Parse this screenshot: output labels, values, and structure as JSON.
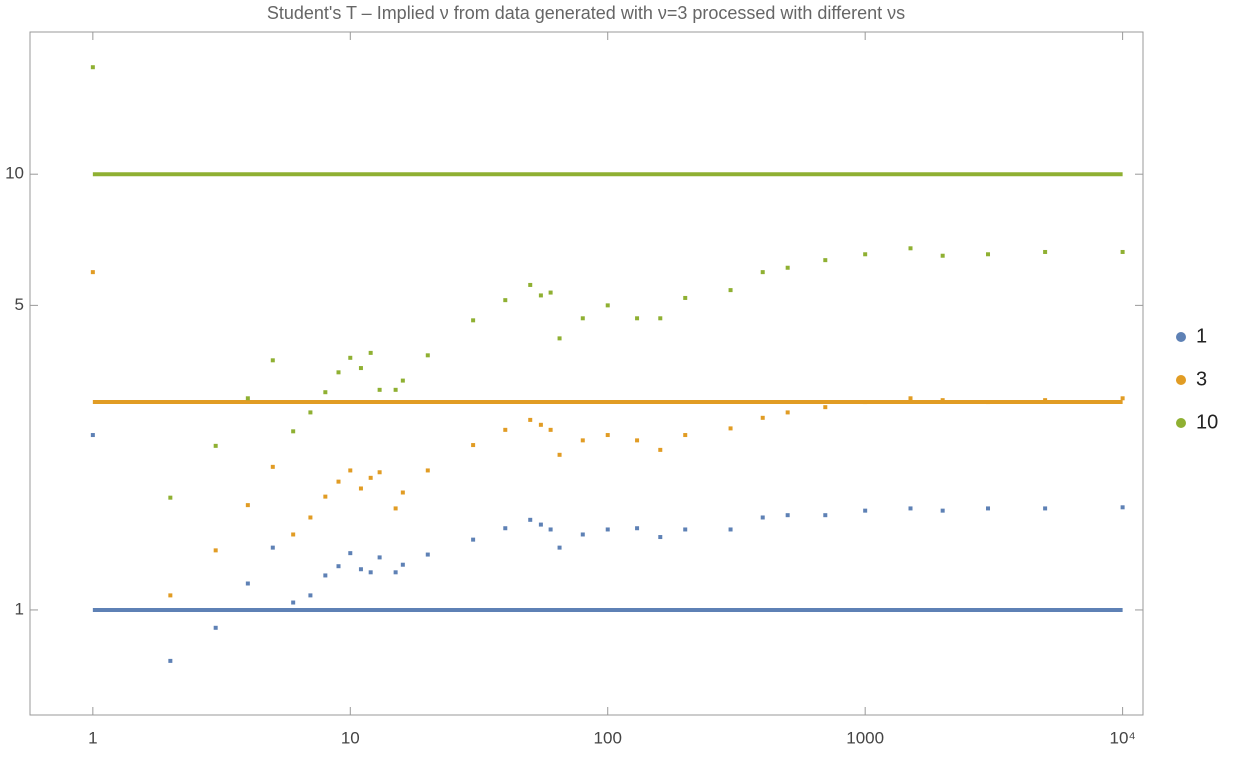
{
  "chart_data": {
    "type": "scatter",
    "title": "Student's T – Implied ν from data generated with ν=3 processed with different νs",
    "x_scale": "log",
    "y_scale": "log",
    "xlim": [
      0.57,
      12000
    ],
    "ylim": [
      0.574,
      21.2
    ],
    "xticks": [
      1,
      10,
      100,
      1000,
      {
        "value": 10000,
        "label": "10⁴"
      }
    ],
    "yticks": [
      1,
      5,
      10
    ],
    "legend": "right",
    "x": [
      1,
      2,
      3,
      4,
      5,
      6,
      7,
      8,
      9,
      10,
      11,
      12,
      13,
      15,
      16,
      20,
      30,
      40,
      50,
      55,
      60,
      65,
      80,
      100,
      130,
      160,
      200,
      300,
      400,
      500,
      700,
      1000,
      1500,
      2000,
      3000,
      5000,
      10000
    ],
    "series": [
      {
        "name": "1",
        "color": "#5e81b5",
        "level": 1,
        "values": [
          2.52,
          0.764,
          0.91,
          1.15,
          1.39,
          1.04,
          1.08,
          1.2,
          1.26,
          1.35,
          1.24,
          1.22,
          1.32,
          1.22,
          1.27,
          1.34,
          1.45,
          1.54,
          1.61,
          1.57,
          1.53,
          1.39,
          1.49,
          1.53,
          1.54,
          1.47,
          1.53,
          1.53,
          1.63,
          1.65,
          1.65,
          1.69,
          1.71,
          1.69,
          1.71,
          1.71,
          1.72
        ]
      },
      {
        "name": "3",
        "color": "#e19c24",
        "level": 3,
        "values": [
          5.96,
          1.08,
          1.37,
          1.74,
          2.13,
          1.49,
          1.63,
          1.82,
          1.97,
          2.09,
          1.9,
          2.01,
          2.07,
          1.71,
          1.86,
          2.09,
          2.39,
          2.59,
          2.73,
          2.66,
          2.59,
          2.27,
          2.45,
          2.52,
          2.45,
          2.33,
          2.52,
          2.61,
          2.76,
          2.84,
          2.92,
          3.0,
          3.06,
          3.03,
          3.0,
          3.03,
          3.06
        ]
      },
      {
        "name": "10",
        "color": "#8fb032",
        "level": 10,
        "values": [
          17.6,
          1.81,
          2.38,
          3.06,
          3.74,
          2.57,
          2.84,
          3.16,
          3.51,
          3.79,
          3.59,
          3.89,
          3.2,
          3.2,
          3.36,
          3.84,
          4.62,
          5.14,
          5.57,
          5.27,
          5.35,
          4.2,
          4.67,
          5.0,
          4.67,
          4.67,
          5.2,
          5.42,
          5.96,
          6.1,
          6.35,
          6.55,
          6.76,
          6.5,
          6.55,
          6.63,
          6.63
        ]
      }
    ]
  }
}
